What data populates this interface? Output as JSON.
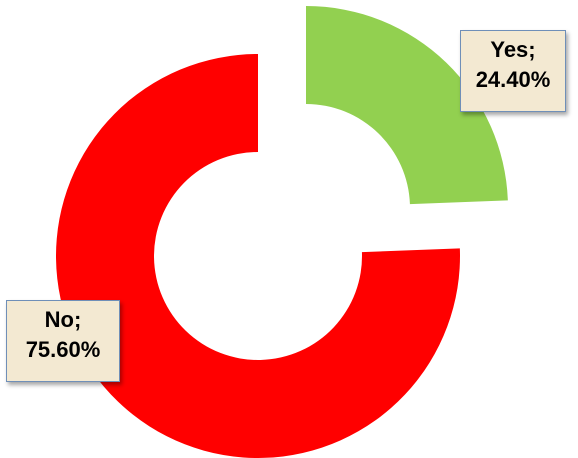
{
  "chart_data": {
    "type": "pie",
    "variant": "donut-exploded",
    "categories": [
      "Yes",
      "No"
    ],
    "values": [
      24.4,
      75.6
    ],
    "unit": "%",
    "colors": [
      "#92d050",
      "#ff0000"
    ],
    "data_labels": [
      {
        "category": "Yes;",
        "value": "24.40%"
      },
      {
        "category": "No;",
        "value": "75.60%"
      }
    ],
    "legend": "none"
  }
}
